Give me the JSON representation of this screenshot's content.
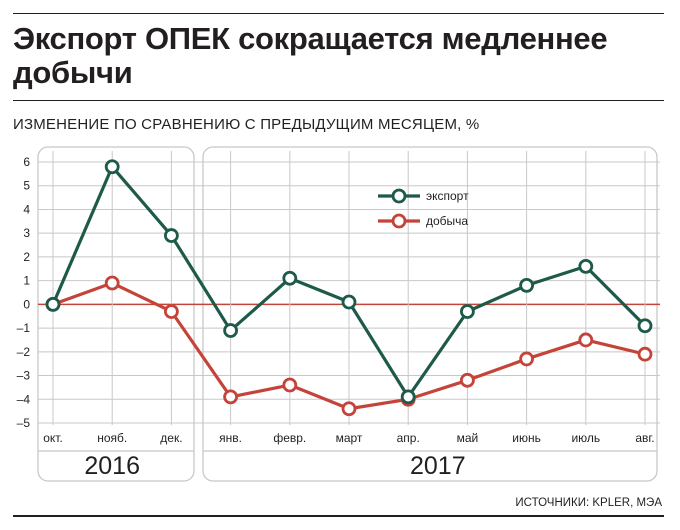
{
  "headline": "Экспорт ОПЕК сокращается медленнее добычи",
  "subtitle": "ИЗМЕНЕНИЕ ПО СРАВНЕНИЮ С ПРЕДЫДУЩИМ МЕСЯЦЕМ, %",
  "source": "ИСТОЧНИКИ: KPLER, МЭА",
  "colors": {
    "export": "#1d5a4a",
    "production": "#c4443a",
    "zero_line": "#c4443a",
    "grid": "#c8c8c8",
    "panel_border": "#c8c8c8"
  },
  "chart_data": {
    "type": "line",
    "title": "Экспорт ОПЕК сокращается медленнее добычи",
    "ylabel": "ИЗМЕНЕНИЕ ПО СРАВНЕНИЮ С ПРЕДЫДУЩИМ МЕСЯЦЕМ, %",
    "categories": [
      "окт.",
      "нояб.",
      "дек.",
      "янв.",
      "февр.",
      "март",
      "апр.",
      "май",
      "июнь",
      "июль",
      "авг."
    ],
    "year_groups": [
      {
        "label": "2016",
        "from": 0,
        "to": 2
      },
      {
        "label": "2017",
        "from": 3,
        "to": 10
      }
    ],
    "ylim": [
      -5,
      6
    ],
    "yticks": [
      6,
      5,
      4,
      3,
      2,
      1,
      0,
      -1,
      -2,
      -3,
      -4,
      -5
    ],
    "legend": "top-center",
    "series": [
      {
        "name": "экспорт",
        "values": [
          0.0,
          5.8,
          2.9,
          -1.1,
          1.1,
          0.1,
          -3.9,
          -0.3,
          0.8,
          1.6,
          -0.9
        ]
      },
      {
        "name": "добыча",
        "values": [
          0.0,
          0.9,
          -0.3,
          -3.9,
          -3.4,
          -4.4,
          -4.0,
          -3.2,
          -2.3,
          -1.5,
          -2.1
        ]
      }
    ]
  }
}
